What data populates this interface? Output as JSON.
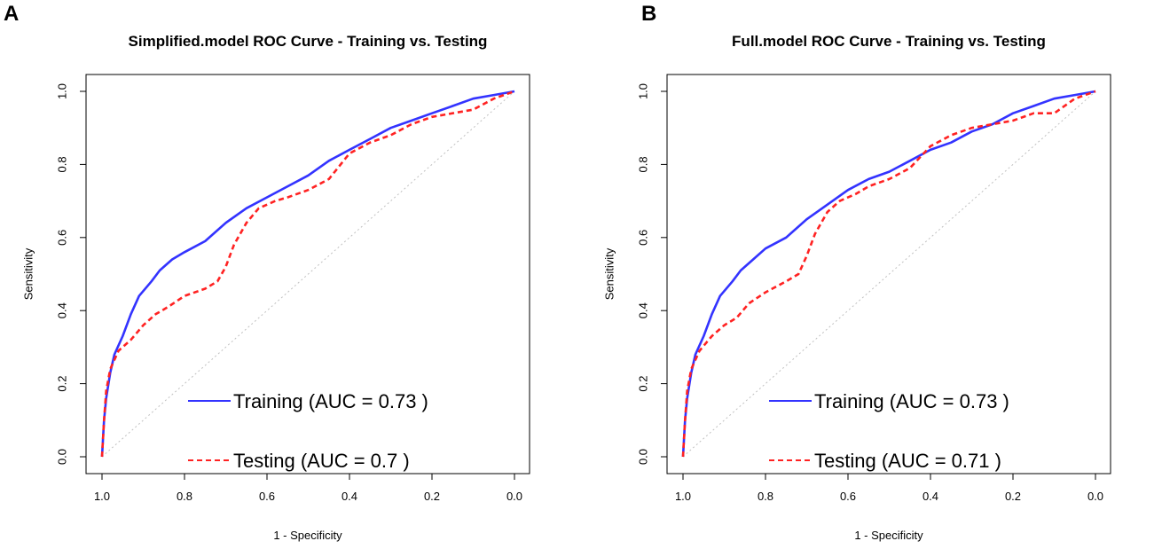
{
  "panels": [
    {
      "label": "A",
      "chart_data": {
        "type": "line",
        "title": "Simplified.model ROC Curve - Training vs. Testing",
        "xlabel": "1 - Specificity",
        "ylabel": "Sensitivity",
        "xlim": [
          1.0,
          0.0
        ],
        "ylim": [
          0.0,
          1.0
        ],
        "x_ticks": [
          "1.0",
          "0.8",
          "0.6",
          "0.4",
          "0.2",
          "0.0"
        ],
        "y_ticks": [
          "0.0",
          "0.2",
          "0.4",
          "0.6",
          "0.8",
          "1.0"
        ],
        "diagonal": true,
        "series": [
          {
            "name": "Training",
            "legend": "Training (AUC = 0.73 )",
            "color": "#3333ff",
            "style": "solid",
            "points": [
              [
                1.0,
                0.0
              ],
              [
                0.995,
                0.1
              ],
              [
                0.99,
                0.16
              ],
              [
                0.98,
                0.23
              ],
              [
                0.97,
                0.28
              ],
              [
                0.95,
                0.33
              ],
              [
                0.93,
                0.39
              ],
              [
                0.91,
                0.44
              ],
              [
                0.88,
                0.48
              ],
              [
                0.86,
                0.51
              ],
              [
                0.83,
                0.54
              ],
              [
                0.8,
                0.56
              ],
              [
                0.75,
                0.59
              ],
              [
                0.7,
                0.64
              ],
              [
                0.65,
                0.68
              ],
              [
                0.6,
                0.71
              ],
              [
                0.55,
                0.74
              ],
              [
                0.5,
                0.77
              ],
              [
                0.45,
                0.81
              ],
              [
                0.4,
                0.84
              ],
              [
                0.35,
                0.87
              ],
              [
                0.3,
                0.9
              ],
              [
                0.25,
                0.92
              ],
              [
                0.2,
                0.94
              ],
              [
                0.15,
                0.96
              ],
              [
                0.1,
                0.98
              ],
              [
                0.05,
                0.99
              ],
              [
                0.0,
                1.0
              ]
            ]
          },
          {
            "name": "Testing",
            "legend": "Testing (AUC = 0.7 )",
            "color": "#ff2222",
            "style": "dashed",
            "points": [
              [
                1.0,
                0.0
              ],
              [
                0.995,
                0.1
              ],
              [
                0.99,
                0.18
              ],
              [
                0.98,
                0.24
              ],
              [
                0.96,
                0.29
              ],
              [
                0.93,
                0.32
              ],
              [
                0.9,
                0.36
              ],
              [
                0.87,
                0.39
              ],
              [
                0.84,
                0.41
              ],
              [
                0.8,
                0.44
              ],
              [
                0.75,
                0.46
              ],
              [
                0.72,
                0.48
              ],
              [
                0.7,
                0.52
              ],
              [
                0.68,
                0.58
              ],
              [
                0.65,
                0.64
              ],
              [
                0.62,
                0.68
              ],
              [
                0.58,
                0.7
              ],
              [
                0.55,
                0.71
              ],
              [
                0.5,
                0.73
              ],
              [
                0.45,
                0.76
              ],
              [
                0.4,
                0.83
              ],
              [
                0.35,
                0.86
              ],
              [
                0.3,
                0.88
              ],
              [
                0.25,
                0.91
              ],
              [
                0.2,
                0.93
              ],
              [
                0.15,
                0.94
              ],
              [
                0.1,
                0.95
              ],
              [
                0.05,
                0.98
              ],
              [
                0.0,
                1.0
              ]
            ]
          }
        ]
      }
    },
    {
      "label": "B",
      "chart_data": {
        "type": "line",
        "title": "Full.model ROC Curve - Training vs. Testing",
        "xlabel": "1 - Specificity",
        "ylabel": "Sensitivity",
        "xlim": [
          1.0,
          0.0
        ],
        "ylim": [
          0.0,
          1.0
        ],
        "x_ticks": [
          "1.0",
          "0.8",
          "0.6",
          "0.4",
          "0.2",
          "0.0"
        ],
        "y_ticks": [
          "0.0",
          "0.2",
          "0.4",
          "0.6",
          "0.8",
          "1.0"
        ],
        "diagonal": true,
        "series": [
          {
            "name": "Training",
            "legend": "Training (AUC = 0.73 )",
            "color": "#3333ff",
            "style": "solid",
            "points": [
              [
                1.0,
                0.0
              ],
              [
                0.995,
                0.1
              ],
              [
                0.99,
                0.16
              ],
              [
                0.98,
                0.23
              ],
              [
                0.97,
                0.28
              ],
              [
                0.95,
                0.33
              ],
              [
                0.93,
                0.39
              ],
              [
                0.91,
                0.44
              ],
              [
                0.88,
                0.48
              ],
              [
                0.86,
                0.51
              ],
              [
                0.83,
                0.54
              ],
              [
                0.8,
                0.57
              ],
              [
                0.75,
                0.6
              ],
              [
                0.7,
                0.65
              ],
              [
                0.65,
                0.69
              ],
              [
                0.6,
                0.73
              ],
              [
                0.55,
                0.76
              ],
              [
                0.5,
                0.78
              ],
              [
                0.45,
                0.81
              ],
              [
                0.4,
                0.84
              ],
              [
                0.35,
                0.86
              ],
              [
                0.3,
                0.89
              ],
              [
                0.25,
                0.91
              ],
              [
                0.2,
                0.94
              ],
              [
                0.15,
                0.96
              ],
              [
                0.1,
                0.98
              ],
              [
                0.05,
                0.99
              ],
              [
                0.0,
                1.0
              ]
            ]
          },
          {
            "name": "Testing",
            "legend": "Testing (AUC = 0.71 )",
            "color": "#ff2222",
            "style": "dashed",
            "points": [
              [
                1.0,
                0.0
              ],
              [
                0.995,
                0.1
              ],
              [
                0.99,
                0.18
              ],
              [
                0.98,
                0.24
              ],
              [
                0.96,
                0.29
              ],
              [
                0.93,
                0.33
              ],
              [
                0.9,
                0.36
              ],
              [
                0.87,
                0.38
              ],
              [
                0.84,
                0.42
              ],
              [
                0.8,
                0.45
              ],
              [
                0.75,
                0.48
              ],
              [
                0.72,
                0.5
              ],
              [
                0.7,
                0.55
              ],
              [
                0.68,
                0.61
              ],
              [
                0.65,
                0.67
              ],
              [
                0.62,
                0.7
              ],
              [
                0.58,
                0.72
              ],
              [
                0.55,
                0.74
              ],
              [
                0.5,
                0.76
              ],
              [
                0.45,
                0.79
              ],
              [
                0.4,
                0.85
              ],
              [
                0.35,
                0.88
              ],
              [
                0.3,
                0.9
              ],
              [
                0.25,
                0.91
              ],
              [
                0.2,
                0.92
              ],
              [
                0.15,
                0.94
              ],
              [
                0.1,
                0.94
              ],
              [
                0.05,
                0.98
              ],
              [
                0.0,
                1.0
              ]
            ]
          }
        ]
      }
    }
  ]
}
